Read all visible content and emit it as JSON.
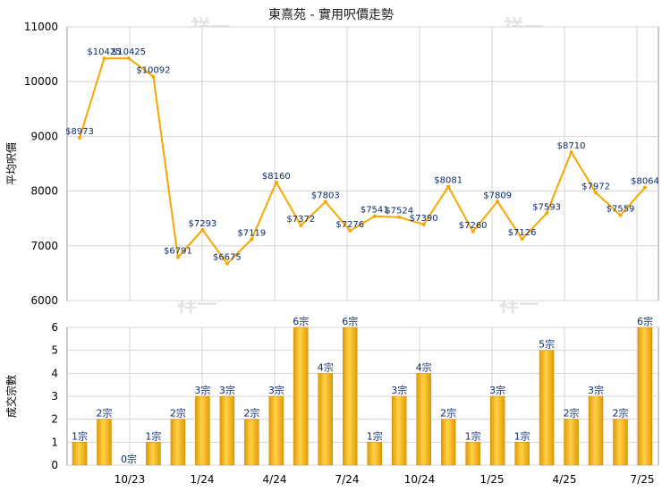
{
  "chart_data": [
    {
      "type": "line",
      "title": "東熹苑 - 實用呎價走勢",
      "ylabel": "平均呎價",
      "ylim": [
        6000,
        11000
      ],
      "yticks": [
        6000,
        7000,
        8000,
        9000,
        10000,
        11000
      ],
      "grid": true,
      "values": [
        8973,
        10425,
        10425,
        10092,
        6791,
        7293,
        6675,
        7119,
        8160,
        7372,
        7803,
        7276,
        7541,
        7524,
        7390,
        8081,
        7260,
        7809,
        7126,
        7593,
        8710,
        7972,
        7559,
        8064
      ],
      "labels": [
        "$8973",
        "$10425",
        "$10425",
        "$10092",
        "$6791",
        "$7293",
        "$6675",
        "$7119",
        "$8160",
        "$7372",
        "$7803",
        "$7276",
        "$7541",
        "$7524",
        "$7390",
        "$8081",
        "$7260",
        "$7809",
        "$7126",
        "$7593",
        "$8710",
        "$7972",
        "$7559",
        "$8064"
      ],
      "color": "#f5a800"
    },
    {
      "type": "bar",
      "ylabel": "成交宗數",
      "ylim": [
        0,
        6
      ],
      "yticks": [
        0,
        1,
        2,
        3,
        4,
        5,
        6
      ],
      "grid": true,
      "values": [
        1,
        2,
        0,
        1,
        2,
        3,
        3,
        2,
        3,
        6,
        4,
        6,
        1,
        3,
        4,
        2,
        1,
        3,
        1,
        5,
        2,
        3,
        2,
        6
      ],
      "labels": [
        "1宗",
        "2宗",
        "0宗",
        "1宗",
        "2宗",
        "3宗",
        "3宗",
        "2宗",
        "3宗",
        "6宗",
        "4宗",
        "6宗",
        "1宗",
        "3宗",
        "4宗",
        "2宗",
        "1宗",
        "3宗",
        "1宗",
        "5宗",
        "2宗",
        "3宗",
        "2宗",
        "6宗"
      ],
      "x_tick_labels": [
        "10/23",
        "1/24",
        "4/24",
        "7/24",
        "10/24",
        "1/25",
        "4/25",
        "7/25"
      ],
      "color": "#f5a800"
    }
  ],
  "watermark": "祥一"
}
